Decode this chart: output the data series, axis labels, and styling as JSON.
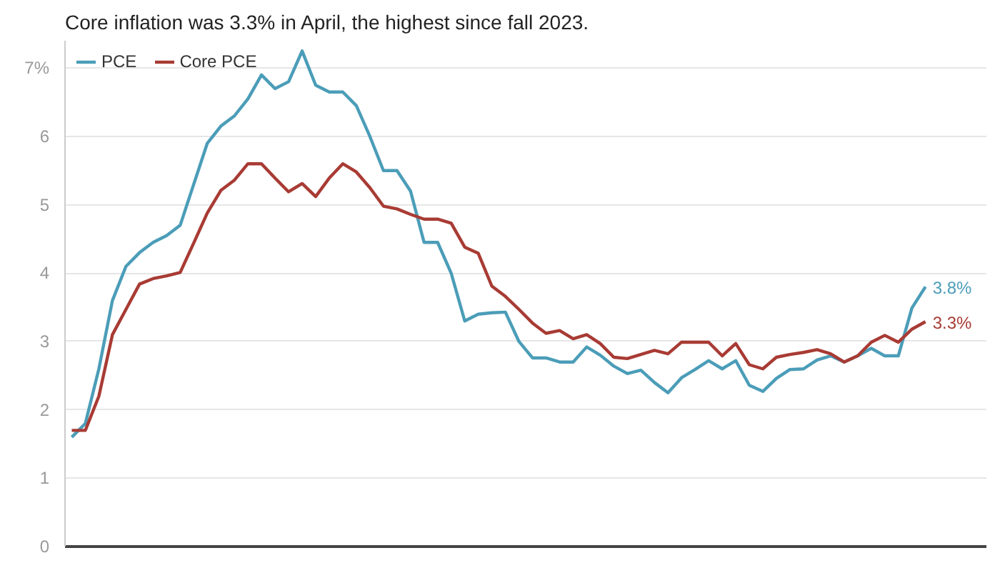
{
  "chart_data": {
    "type": "line",
    "title": "Core inflation was 3.3% in April, the highest since fall 2023.",
    "categories": [
      null,
      null,
      null,
      null,
      null,
      null,
      null,
      null,
      null,
      null,
      null,
      null,
      null,
      null,
      null,
      null,
      null,
      null,
      null,
      null,
      null,
      null,
      null,
      null,
      null,
      null,
      null,
      null,
      null,
      null,
      null,
      null,
      null,
      null,
      null,
      null,
      null,
      null,
      null,
      null,
      null,
      null,
      null,
      null,
      null,
      null,
      null,
      null,
      null,
      null,
      null,
      null,
      null,
      null,
      null,
      null,
      null,
      null,
      null,
      null,
      null,
      null,
      null,
      null
    ],
    "series": [
      {
        "name": "PCE",
        "color": "#4b9db8",
        "values": [
          1.6,
          1.8,
          2.6,
          3.6,
          4.1,
          4.3,
          4.45,
          4.55,
          4.7,
          5.3,
          5.9,
          6.15,
          6.3,
          6.55,
          6.9,
          6.7,
          6.8,
          7.25,
          6.75,
          6.65,
          6.65,
          6.45,
          6.0,
          5.5,
          5.5,
          5.2,
          4.45,
          4.45,
          4.0,
          3.3,
          3.4,
          3.42,
          3.43,
          3.0,
          2.76,
          2.76,
          2.7,
          2.7,
          2.92,
          2.8,
          2.64,
          2.53,
          2.58,
          2.4,
          2.25,
          2.47,
          2.59,
          2.72,
          2.6,
          2.72,
          2.36,
          2.27,
          2.46,
          2.59,
          2.6,
          2.73,
          2.79,
          2.7,
          2.79,
          2.9,
          2.79,
          2.79,
          3.49,
          3.8
        ],
        "value_labels": [
          null,
          null,
          null,
          null,
          null,
          null,
          null,
          null,
          null,
          null,
          null,
          null,
          null,
          null,
          null,
          null,
          null,
          null,
          null,
          null,
          null,
          null,
          null,
          null,
          null,
          null,
          null,
          null,
          null,
          null,
          null,
          null,
          null,
          null,
          null,
          null,
          null,
          null,
          null,
          null,
          null,
          null,
          null,
          null,
          null,
          null,
          null,
          null,
          null,
          null,
          null,
          null,
          null,
          null,
          null,
          null,
          null,
          null,
          null,
          null,
          null,
          null,
          null,
          "3.8%"
        ]
      },
      {
        "name": "Core PCE",
        "color": "#a83b34",
        "values": [
          1.7,
          1.7,
          2.2,
          3.1,
          3.47,
          3.84,
          3.92,
          3.96,
          4.01,
          4.44,
          4.88,
          5.21,
          5.36,
          5.6,
          5.6,
          5.39,
          5.19,
          5.31,
          5.12,
          5.39,
          5.6,
          5.48,
          5.25,
          4.98,
          4.94,
          4.86,
          4.79,
          4.79,
          4.73,
          4.38,
          4.29,
          3.81,
          3.66,
          3.47,
          3.27,
          3.12,
          3.16,
          3.04,
          3.1,
          2.97,
          2.77,
          2.75,
          2.81,
          2.87,
          2.82,
          2.99,
          2.99,
          2.99,
          2.79,
          2.97,
          2.66,
          2.6,
          2.77,
          2.81,
          2.84,
          2.88,
          2.82,
          2.7,
          2.79,
          2.99,
          3.09,
          2.99,
          3.18,
          3.29
        ],
        "value_labels": [
          null,
          null,
          null,
          null,
          null,
          null,
          null,
          null,
          null,
          null,
          null,
          null,
          null,
          null,
          null,
          null,
          null,
          null,
          null,
          null,
          null,
          null,
          null,
          null,
          null,
          null,
          null,
          null,
          null,
          null,
          null,
          null,
          null,
          null,
          null,
          null,
          null,
          null,
          null,
          null,
          null,
          null,
          null,
          null,
          null,
          null,
          null,
          null,
          null,
          null,
          null,
          null,
          null,
          null,
          null,
          null,
          null,
          null,
          null,
          null,
          null,
          null,
          null,
          "3.3%"
        ]
      }
    ],
    "ylim": [
      0,
      7.4
    ],
    "yticks": [
      0,
      1,
      2,
      3,
      4,
      5,
      6,
      {
        "value": 7,
        "label": "7%"
      }
    ],
    "grid": "y",
    "legend": "top left",
    "marker": "none",
    "line_style": "solid"
  }
}
